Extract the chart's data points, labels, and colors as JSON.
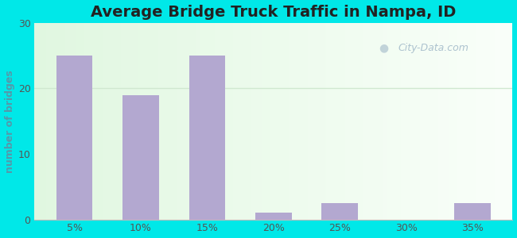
{
  "categories": [
    "5%",
    "10%",
    "15%",
    "20%",
    "25%",
    "30%",
    "35%"
  ],
  "values": [
    25,
    19,
    25,
    1,
    2.5,
    0,
    2.5
  ],
  "bar_color": "#b3a8d0",
  "title": "Average Bridge Truck Traffic in Nampa, ID",
  "ylabel": "number of bridges",
  "ylim": [
    0,
    30
  ],
  "yticks": [
    0,
    10,
    20,
    30
  ],
  "bg_outer": "#00e8e8",
  "title_fontsize": 14,
  "label_fontsize": 9,
  "tick_fontsize": 9,
  "watermark": "City-Data.com",
  "watermark_color": "#a0b8c8",
  "ylabel_color": "#5599aa",
  "tick_color": "#555555",
  "grid_color": "#d0e8d0",
  "plot_bg_left": "#d8eed8",
  "plot_bg_right": "#f8fff8"
}
